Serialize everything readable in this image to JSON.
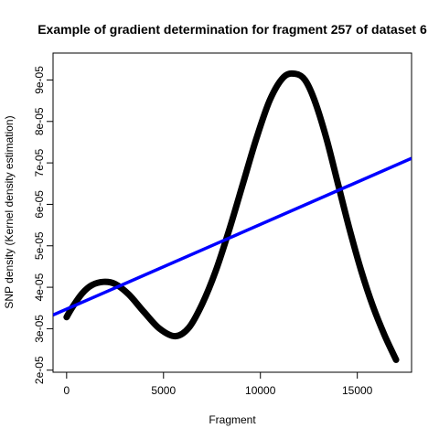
{
  "chart_data": {
    "type": "line",
    "title": "Example of gradient determination for fragment 257 of dataset 6",
    "xlabel": "Fragment",
    "ylabel": "SNP density (Kernel density estimation)",
    "xlim": [
      -700,
      17800
    ],
    "ylim": [
      1.95e-05,
      9.65e-05
    ],
    "x_ticks": [
      0,
      5000,
      10000,
      15000
    ],
    "x_tick_labels": [
      "0",
      "5000",
      "10000",
      "15000"
    ],
    "y_ticks": [
      2e-05,
      3e-05,
      4e-05,
      5e-05,
      6e-05,
      7e-05,
      8e-05,
      9e-05
    ],
    "y_tick_labels": [
      "2e-05",
      "3e-05",
      "4e-05",
      "5e-05",
      "6e-05",
      "7e-05",
      "8e-05",
      "9e-05"
    ],
    "grid": false,
    "series": [
      {
        "kind": "density",
        "color": "#000000",
        "x": [
          0,
          300,
          800,
          1300,
          1900,
          2500,
          3200,
          4000,
          4800,
          5600,
          6300,
          7000,
          7700,
          8400,
          9100,
          9800,
          10500,
          11200,
          11800,
          12300,
          12800,
          13400,
          14000,
          14600,
          15200,
          15800,
          16400,
          17000
        ],
        "y": [
          3.28e-05,
          3.52e-05,
          3.85e-05,
          4.05e-05,
          4.13e-05,
          4.08e-05,
          3.83e-05,
          3.4e-05,
          3e-05,
          2.82e-05,
          3.02e-05,
          3.6e-05,
          4.4e-05,
          5.4e-05,
          6.5e-05,
          7.6e-05,
          8.53e-05,
          9.07e-05,
          9.15e-05,
          9e-05,
          8.5e-05,
          7.6e-05,
          6.5e-05,
          5.4e-05,
          4.4e-05,
          3.55e-05,
          2.85e-05,
          2.25e-05
        ]
      },
      {
        "kind": "linear-fit",
        "color": "#0000ff",
        "x": [
          -700,
          17800
        ],
        "y": [
          3.33e-05,
          7.11e-05
        ]
      }
    ]
  }
}
